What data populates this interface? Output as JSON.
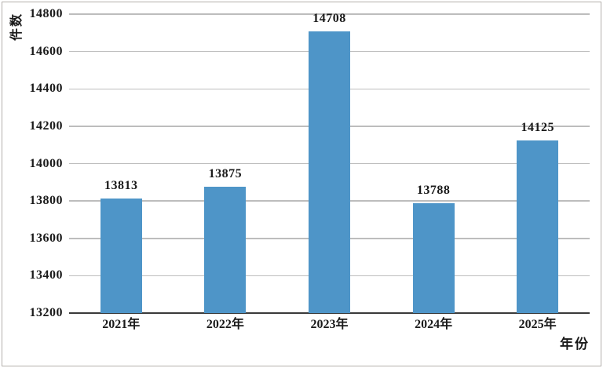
{
  "chart_data": {
    "type": "bar",
    "title": "",
    "categories": [
      "2021年",
      "2022年",
      "2023年",
      "2024年",
      "2025年"
    ],
    "values": [
      13813,
      13875,
      14708,
      13788,
      14125
    ],
    "data_labels": [
      "13813",
      "13875",
      "14708",
      "13788",
      "14125"
    ],
    "xlabel": "年份",
    "ylabel": "件数",
    "ylim": [
      13200,
      14800
    ],
    "yticks": [
      13200,
      13400,
      13600,
      13800,
      14000,
      14200,
      14400,
      14600,
      14800
    ],
    "grid": "horizontal-gridlines-on",
    "legend": "none",
    "colors": {
      "bar": "#4E95C8",
      "gridline": "#BDBDBD",
      "axis_line": "#3A3A3A",
      "text": "#1A1A1A",
      "frame_border": "#B3B0AC"
    }
  }
}
